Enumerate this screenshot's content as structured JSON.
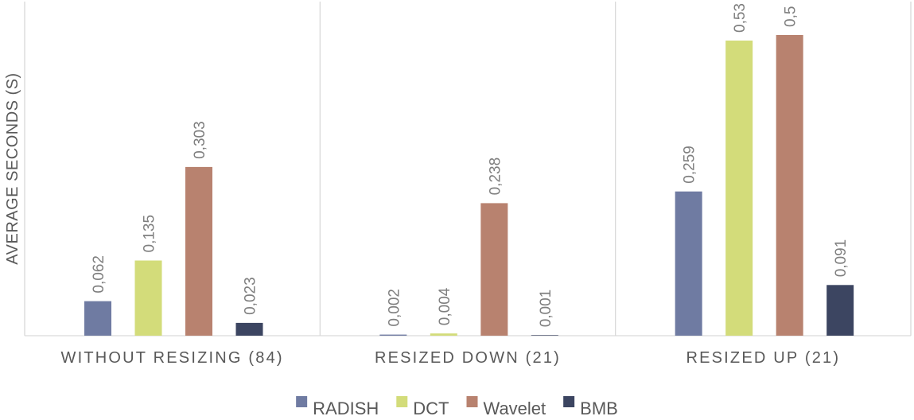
{
  "chart_data": {
    "type": "bar",
    "title": "",
    "xlabel": "",
    "ylabel": "AVERAGE SECONDS (S)",
    "categories": [
      "WITHOUT RESIZING (84)",
      "RESIZED DOWN (21)",
      "RESIZED UP (21)"
    ],
    "series": [
      {
        "name": "RADISH",
        "color": "#6f7ba2",
        "values": [
          0.062,
          0.002,
          0.259
        ],
        "labels": [
          "0,062",
          "0,002",
          "0,259"
        ]
      },
      {
        "name": "DCT",
        "color": "#d3dc7a",
        "values": [
          0.135,
          0.004,
          0.53
        ],
        "labels": [
          "0,135",
          "0,004",
          "0,53"
        ]
      },
      {
        "name": "Wavelet",
        "color": "#b8826f",
        "values": [
          0.303,
          0.238,
          0.54
        ],
        "labels": [
          "0,303",
          "0,238",
          "0,5"
        ]
      },
      {
        "name": "BMB",
        "color": "#3c4561",
        "values": [
          0.023,
          0.001,
          0.091
        ],
        "labels": [
          "0,023",
          "0,001",
          "0,091"
        ]
      }
    ],
    "ylim": [
      0,
      0.6
    ],
    "grid": false,
    "legend": "bottom"
  }
}
